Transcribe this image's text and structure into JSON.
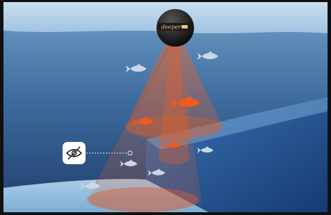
{
  "device": {
    "brand": "deeper"
  }
}
